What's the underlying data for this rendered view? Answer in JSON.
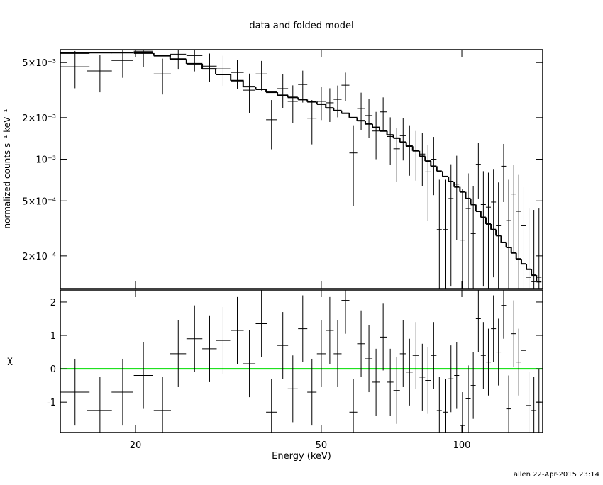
{
  "chart_data": [
    {
      "type": "errorbar",
      "title": "data and folded model",
      "ylabel": "normalized counts s⁻¹ keV⁻¹",
      "xlog": true,
      "ylog": true,
      "xlim": [
        13.8,
        149
      ],
      "ylim": [
        0.000116,
        0.0062
      ],
      "xticks": [
        20,
        50,
        100
      ],
      "show_xtick_labels": false,
      "yticks": [
        {
          "value": 0.0002,
          "label": "2×10⁻⁴"
        },
        {
          "value": 0.0005,
          "label": "5×10⁻⁴"
        },
        {
          "value": 0.001,
          "label": "10⁻³"
        },
        {
          "value": 0.002,
          "label": "2×10⁻³"
        },
        {
          "value": 0.005,
          "label": "5×10⁻³"
        }
      ],
      "color": "#000000",
      "model_color": "#000000",
      "x": [
        14.84,
        16.78,
        18.77,
        20.79,
        22.85,
        24.69,
        26.76,
        28.82,
        30.8,
        33.04,
        35.07,
        37.23,
        39.11,
        41.36,
        43.45,
        45.63,
        47.75,
        50.0,
        52.14,
        54.2,
        56.33,
        58.56,
        60.85,
        63.24,
        65.5,
        67.84,
        70.26,
        72.53,
        74.86,
        77.26,
        79.74,
        82.29,
        84.63,
        87.04,
        89.5,
        92.1,
        94.8,
        97.5,
        100.3,
        103.2,
        105.8,
        108.5,
        111.2,
        114.0,
        116.9,
        119.8,
        122.9,
        126.0,
        129.2,
        132.4,
        135.8,
        139.2,
        142.7,
        146.3
      ],
      "xerr": [
        1.1,
        1.02,
        1.0,
        0.96,
        0.97,
        0.97,
        1.05,
        1.03,
        1.1,
        1.06,
        1.06,
        1.05,
        1.03,
        1.09,
        1.07,
        1.04,
        1.09,
        1.07,
        1.02,
        1.06,
        1.1,
        1.14,
        1.18,
        1.12,
        1.16,
        1.2,
        1.12,
        1.16,
        1.19,
        1.23,
        1.27,
        1.16,
        1.2,
        1.23,
        1.1,
        1.13,
        1.17,
        1.2,
        1.23,
        1.27,
        1.3,
        1.33,
        1.37,
        1.4,
        1.44,
        1.47,
        1.51,
        1.55,
        1.59,
        1.63,
        1.67,
        1.71,
        1.75,
        1.8
      ],
      "values": [
        0.00466,
        0.00435,
        0.00518,
        0.00604,
        0.00414,
        0.00575,
        0.00562,
        0.00471,
        0.0045,
        0.00424,
        0.00316,
        0.00414,
        0.00193,
        0.00324,
        0.00262,
        0.00347,
        0.00198,
        0.00262,
        0.00256,
        0.00271,
        0.00343,
        0.00111,
        0.00233,
        0.00207,
        0.0016,
        0.0022,
        0.00146,
        0.00119,
        0.00148,
        0.00126,
        0.00115,
        0.00109,
        0.00081,
        0.001,
        0.00031,
        0.00031,
        0.00052,
        0.00066,
        0.00026,
        0.00044,
        0.00029,
        0.00092,
        0.00047,
        0.00045,
        0.00049,
        0.00033,
        0.00089,
        0.00036,
        0.00056,
        0.00042,
        0.00033,
        0.00014,
        0.00013,
        0.00014
      ],
      "yerr": [
        0.0014,
        0.0013,
        0.0013,
        0.0014,
        0.0012,
        0.0013,
        0.0013,
        0.0011,
        0.0011,
        0.001,
        0.001,
        0.001,
        0.00075,
        0.0009,
        0.0008,
        0.0009,
        0.0007,
        0.0007,
        0.0007,
        0.0007,
        0.0008,
        0.00065,
        0.0007,
        0.00065,
        0.0006,
        0.0006,
        0.00055,
        0.0005,
        0.0005,
        0.0005,
        0.00045,
        0.00045,
        0.00045,
        0.00045,
        0.0004,
        0.0004,
        0.0004,
        0.0004,
        0.00035,
        0.00035,
        0.00035,
        0.0004,
        0.00035,
        0.00035,
        0.00035,
        0.00035,
        0.0004,
        0.00035,
        0.00035,
        0.00035,
        0.0003,
        0.0003,
        0.0003,
        0.0003
      ],
      "model": [
        0.00585,
        0.0059,
        0.0059,
        0.00585,
        0.0056,
        0.0053,
        0.0049,
        0.0045,
        0.0041,
        0.0037,
        0.00335,
        0.0032,
        0.00305,
        0.0029,
        0.0028,
        0.0027,
        0.0026,
        0.0025,
        0.00235,
        0.00225,
        0.00215,
        0.002,
        0.0019,
        0.0018,
        0.0017,
        0.0016,
        0.0015,
        0.00142,
        0.00133,
        0.00124,
        0.00115,
        0.00105,
        0.00097,
        0.00089,
        0.00082,
        0.00075,
        0.00069,
        0.00063,
        0.00058,
        0.00052,
        0.00047,
        0.00042,
        0.00038,
        0.00034,
        0.00031,
        0.00028,
        0.00025,
        0.00023,
        0.00021,
        0.00019,
        0.000175,
        0.00016,
        0.000145,
        0.00013
      ]
    },
    {
      "type": "errorbar",
      "xlabel": "Energy (keV)",
      "ylabel": "χ",
      "xlog": true,
      "ylog": false,
      "xlim": [
        13.8,
        149
      ],
      "ylim": [
        -1.91,
        2.36
      ],
      "xticks": [
        20,
        50,
        100
      ],
      "show_xtick_labels": true,
      "yticks": [
        -1,
        0,
        1,
        2
      ],
      "color": "#000000",
      "hline": 0,
      "hline_color": "#00dd00",
      "x": [
        14.84,
        16.78,
        18.77,
        20.79,
        22.85,
        24.69,
        26.76,
        28.82,
        30.8,
        33.04,
        35.07,
        37.23,
        39.11,
        41.36,
        43.45,
        45.63,
        47.75,
        50.0,
        52.14,
        54.2,
        56.33,
        58.56,
        60.85,
        63.24,
        65.5,
        67.84,
        70.26,
        72.53,
        74.86,
        77.26,
        79.74,
        82.29,
        84.63,
        87.04,
        89.5,
        92.1,
        94.8,
        97.5,
        100.3,
        103.2,
        105.8,
        108.5,
        111.2,
        114.0,
        116.9,
        119.8,
        122.9,
        126.0,
        129.2,
        132.4,
        135.8,
        139.2,
        142.7,
        146.3
      ],
      "xerr": [
        1.1,
        1.02,
        1.0,
        0.96,
        0.97,
        0.97,
        1.05,
        1.03,
        1.1,
        1.06,
        1.06,
        1.05,
        1.03,
        1.09,
        1.07,
        1.04,
        1.09,
        1.07,
        1.02,
        1.06,
        1.1,
        1.14,
        1.18,
        1.12,
        1.16,
        1.2,
        1.12,
        1.16,
        1.19,
        1.23,
        1.27,
        1.16,
        1.2,
        1.23,
        1.1,
        1.13,
        1.17,
        1.2,
        1.23,
        1.27,
        1.3,
        1.33,
        1.37,
        1.4,
        1.44,
        1.47,
        1.51,
        1.55,
        1.59,
        1.63,
        1.67,
        1.71,
        1.75,
        1.8
      ],
      "values": [
        -0.7,
        -1.25,
        -0.7,
        -0.2,
        -1.25,
        0.45,
        0.9,
        0.6,
        0.85,
        1.15,
        0.15,
        1.35,
        -1.3,
        0.7,
        -0.6,
        1.2,
        -0.7,
        0.45,
        1.15,
        0.45,
        2.05,
        -1.3,
        0.75,
        0.3,
        -0.4,
        0.95,
        -0.4,
        -0.65,
        0.45,
        -0.1,
        0.4,
        -0.25,
        -0.35,
        0.4,
        -1.25,
        -1.3,
        -0.3,
        -0.2,
        -1.7,
        -0.9,
        -0.5,
        1.5,
        0.4,
        0.2,
        1.2,
        0.5,
        1.9,
        -1.2,
        1.05,
        0.2,
        0.55,
        -1.1,
        -1.25,
        -1.0
      ],
      "yerr": [
        1,
        1,
        1,
        1,
        1,
        1,
        1,
        1,
        1,
        1,
        1,
        1,
        1,
        1,
        1,
        1,
        1,
        1,
        1,
        1,
        1,
        1,
        1,
        1,
        1,
        1,
        1,
        1,
        1,
        1,
        1,
        1,
        1,
        1,
        1,
        1,
        1,
        1,
        1,
        1,
        1,
        1,
        1,
        1,
        1,
        1,
        1,
        1,
        1,
        1,
        1,
        1,
        1,
        1
      ]
    }
  ],
  "footer": "allen 22-Apr-2015 23:14"
}
